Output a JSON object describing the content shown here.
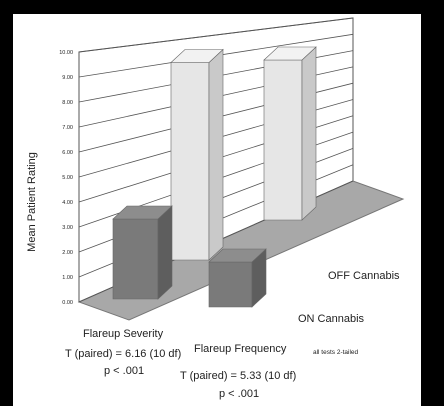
{
  "chart_data": {
    "type": "bar",
    "categories": [
      "Flareup Severity",
      "Flareup Frequency"
    ],
    "series": [
      {
        "name": "ON Cannabis",
        "values": [
          3.2,
          1.8
        ]
      },
      {
        "name": "OFF Cannabis",
        "values": [
          7.9,
          6.4
        ]
      }
    ],
    "ylabel": "Mean Patient Rating",
    "ylim": [
      0,
      10
    ],
    "yticks": [
      "0.00",
      "1.00",
      "2.00",
      "3.00",
      "4.00",
      "5.00",
      "6.00",
      "7.00",
      "8.00",
      "9.00",
      "10.00"
    ],
    "grid": true,
    "annotations": {
      "severity_test": "T (paired) = 6.16 (10 df)",
      "severity_p": "p < .001",
      "frequency_test": "T (paired) = 5.33 (10 df)",
      "frequency_p": "p < .001",
      "note": "all tests 2-tailed"
    }
  },
  "colors": {
    "background": "#000000",
    "panel": "#ffffff",
    "on_bar": "#7a7a7a",
    "off_bar": "#e6e6e6",
    "floor": "#a8a8a8",
    "wall": "#ffffff"
  }
}
